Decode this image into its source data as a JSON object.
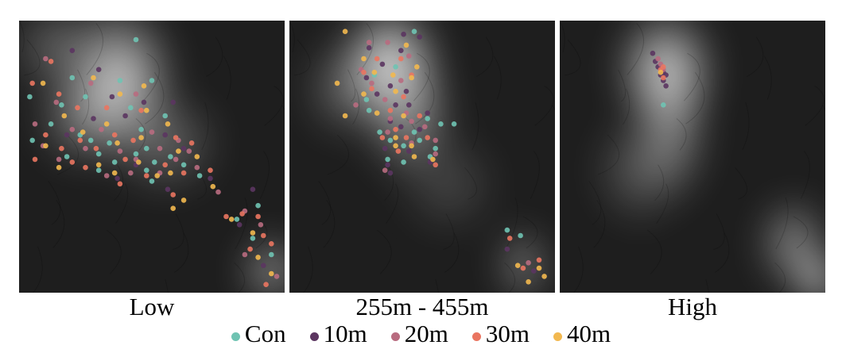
{
  "chart_data": {
    "type": "scatter",
    "title": "",
    "series_names": [
      "Con",
      "10m",
      "20m",
      "30m",
      "40m"
    ],
    "colors": {
      "Con": "#6fc3b2",
      "10m": "#5b3560",
      "20m": "#b86b7f",
      "30m": "#ea7560",
      "40m": "#f2b84f"
    },
    "legend_position": "bottom",
    "background": "grayscale elevation map",
    "panels": [
      {
        "label": "Low",
        "points": {
          "Con": [
            [
              0.44,
              0.07
            ],
            [
              0.2,
              0.21
            ],
            [
              0.38,
              0.22
            ],
            [
              0.04,
              0.28
            ],
            [
              0.5,
              0.22
            ],
            [
              0.25,
              0.28
            ],
            [
              0.16,
              0.31
            ],
            [
              0.42,
              0.32
            ],
            [
              0.55,
              0.35
            ],
            [
              0.12,
              0.38
            ],
            [
              0.23,
              0.42
            ],
            [
              0.05,
              0.44
            ],
            [
              0.34,
              0.45
            ],
            [
              0.46,
              0.4
            ],
            [
              0.27,
              0.44
            ],
            [
              0.48,
              0.47
            ],
            [
              0.3,
              0.49
            ],
            [
              0.44,
              0.49
            ],
            [
              0.57,
              0.5
            ],
            [
              0.18,
              0.5
            ],
            [
              0.36,
              0.52
            ],
            [
              0.51,
              0.52
            ],
            [
              0.62,
              0.53
            ],
            [
              0.48,
              0.55
            ],
            [
              0.68,
              0.57
            ],
            [
              0.5,
              0.59
            ],
            [
              0.3,
              0.55
            ],
            [
              0.9,
              0.68
            ],
            [
              0.88,
              0.8
            ],
            [
              0.95,
              0.86
            ],
            [
              0.82,
              0.73
            ]
          ],
          "10m": [
            [
              0.2,
              0.11
            ],
            [
              0.3,
              0.18
            ],
            [
              0.35,
              0.28
            ],
            [
              0.47,
              0.3
            ],
            [
              0.58,
              0.3
            ],
            [
              0.28,
              0.36
            ],
            [
              0.4,
              0.35
            ],
            [
              0.18,
              0.42
            ],
            [
              0.55,
              0.42
            ],
            [
              0.62,
              0.47
            ],
            [
              0.44,
              0.53
            ],
            [
              0.37,
              0.58
            ],
            [
              0.56,
              0.62
            ],
            [
              0.72,
              0.58
            ],
            [
              0.83,
              0.75
            ],
            [
              0.92,
              0.9
            ],
            [
              0.88,
              0.62
            ]
          ],
          "20m": [
            [
              0.1,
              0.14
            ],
            [
              0.27,
              0.23
            ],
            [
              0.14,
              0.3
            ],
            [
              0.44,
              0.27
            ],
            [
              0.06,
              0.38
            ],
            [
              0.2,
              0.4
            ],
            [
              0.31,
              0.4
            ],
            [
              0.5,
              0.41
            ],
            [
              0.6,
              0.44
            ],
            [
              0.09,
              0.46
            ],
            [
              0.25,
              0.47
            ],
            [
              0.38,
              0.48
            ],
            [
              0.53,
              0.47
            ],
            [
              0.64,
              0.48
            ],
            [
              0.15,
              0.51
            ],
            [
              0.44,
              0.51
            ],
            [
              0.59,
              0.51
            ],
            [
              0.67,
              0.54
            ],
            [
              0.33,
              0.57
            ],
            [
              0.42,
              0.56
            ],
            [
              0.53,
              0.56
            ],
            [
              0.75,
              0.63
            ],
            [
              0.85,
              0.7
            ],
            [
              0.91,
              0.75
            ],
            [
              0.85,
              0.86
            ],
            [
              0.97,
              0.94
            ]
          ],
          "30m": [
            [
              0.12,
              0.15
            ],
            [
              0.05,
              0.23
            ],
            [
              0.15,
              0.27
            ],
            [
              0.22,
              0.32
            ],
            [
              0.33,
              0.32
            ],
            [
              0.46,
              0.33
            ],
            [
              0.1,
              0.42
            ],
            [
              0.23,
              0.44
            ],
            [
              0.36,
              0.42
            ],
            [
              0.59,
              0.43
            ],
            [
              0.16,
              0.47
            ],
            [
              0.29,
              0.47
            ],
            [
              0.43,
              0.44
            ],
            [
              0.65,
              0.45
            ],
            [
              0.06,
              0.51
            ],
            [
              0.2,
              0.52
            ],
            [
              0.4,
              0.51
            ],
            [
              0.55,
              0.53
            ],
            [
              0.25,
              0.54
            ],
            [
              0.48,
              0.57
            ],
            [
              0.62,
              0.56
            ],
            [
              0.72,
              0.55
            ],
            [
              0.38,
              0.6
            ],
            [
              0.58,
              0.64
            ],
            [
              0.78,
              0.72
            ],
            [
              0.84,
              0.71
            ],
            [
              0.9,
              0.72
            ],
            [
              0.92,
              0.79
            ],
            [
              0.95,
              0.82
            ],
            [
              0.87,
              0.84
            ],
            [
              0.93,
              0.97
            ]
          ],
          "40m": [
            [
              0.09,
              0.23
            ],
            [
              0.28,
              0.21
            ],
            [
              0.47,
              0.24
            ],
            [
              0.38,
              0.27
            ],
            [
              0.48,
              0.33
            ],
            [
              0.17,
              0.35
            ],
            [
              0.33,
              0.38
            ],
            [
              0.56,
              0.38
            ],
            [
              0.24,
              0.41
            ],
            [
              0.46,
              0.43
            ],
            [
              0.1,
              0.46
            ],
            [
              0.37,
              0.45
            ],
            [
              0.6,
              0.48
            ],
            [
              0.67,
              0.5
            ],
            [
              0.15,
              0.54
            ],
            [
              0.3,
              0.53
            ],
            [
              0.45,
              0.52
            ],
            [
              0.57,
              0.56
            ],
            [
              0.36,
              0.56
            ],
            [
              0.52,
              0.57
            ],
            [
              0.73,
              0.61
            ],
            [
              0.62,
              0.66
            ],
            [
              0.58,
              0.69
            ],
            [
              0.8,
              0.73
            ],
            [
              0.88,
              0.78
            ],
            [
              0.95,
              0.93
            ],
            [
              0.9,
              0.87
            ]
          ]
        }
      },
      {
        "label": "255m - 455m",
        "points": {
          "Con": [
            [
              0.47,
              0.04
            ],
            [
              0.32,
              0.2
            ],
            [
              0.4,
              0.17
            ],
            [
              0.29,
              0.29
            ],
            [
              0.3,
              0.33
            ],
            [
              0.52,
              0.36
            ],
            [
              0.57,
              0.38
            ],
            [
              0.34,
              0.41
            ],
            [
              0.62,
              0.38
            ],
            [
              0.47,
              0.41
            ],
            [
              0.38,
              0.44
            ],
            [
              0.43,
              0.46
            ],
            [
              0.55,
              0.47
            ],
            [
              0.49,
              0.44
            ],
            [
              0.37,
              0.51
            ],
            [
              0.43,
              0.52
            ],
            [
              0.53,
              0.5
            ],
            [
              0.82,
              0.77
            ],
            [
              0.87,
              0.79
            ]
          ],
          "10m": [
            [
              0.43,
              0.05
            ],
            [
              0.49,
              0.06
            ],
            [
              0.3,
              0.1
            ],
            [
              0.42,
              0.11
            ],
            [
              0.35,
              0.16
            ],
            [
              0.29,
              0.21
            ],
            [
              0.38,
              0.24
            ],
            [
              0.44,
              0.26
            ],
            [
              0.33,
              0.27
            ],
            [
              0.4,
              0.31
            ],
            [
              0.45,
              0.31
            ],
            [
              0.52,
              0.34
            ],
            [
              0.38,
              0.37
            ],
            [
              0.42,
              0.39
            ],
            [
              0.49,
              0.4
            ],
            [
              0.36,
              0.47
            ],
            [
              0.45,
              0.48
            ],
            [
              0.53,
              0.52
            ],
            [
              0.37,
              0.53
            ],
            [
              0.38,
              0.56
            ],
            [
              0.82,
              0.84
            ],
            [
              0.92,
              0.92
            ]
          ],
          "20m": [
            [
              0.3,
              0.08
            ],
            [
              0.37,
              0.08
            ],
            [
              0.45,
              0.13
            ],
            [
              0.27,
              0.18
            ],
            [
              0.31,
              0.23
            ],
            [
              0.42,
              0.22
            ],
            [
              0.36,
              0.29
            ],
            [
              0.25,
              0.31
            ],
            [
              0.44,
              0.34
            ],
            [
              0.38,
              0.36
            ],
            [
              0.46,
              0.37
            ],
            [
              0.51,
              0.39
            ],
            [
              0.37,
              0.41
            ],
            [
              0.55,
              0.44
            ],
            [
              0.46,
              0.45
            ],
            [
              0.55,
              0.49
            ],
            [
              0.36,
              0.55
            ],
            [
              0.9,
              0.89
            ]
          ],
          "30m": [
            [
              0.33,
              0.14
            ],
            [
              0.42,
              0.14
            ],
            [
              0.28,
              0.19
            ],
            [
              0.46,
              0.2
            ],
            [
              0.31,
              0.25
            ],
            [
              0.43,
              0.28
            ],
            [
              0.38,
              0.33
            ],
            [
              0.49,
              0.35
            ],
            [
              0.4,
              0.4
            ],
            [
              0.35,
              0.43
            ],
            [
              0.44,
              0.43
            ],
            [
              0.52,
              0.43
            ],
            [
              0.41,
              0.48
            ],
            [
              0.55,
              0.53
            ],
            [
              0.83,
              0.8
            ],
            [
              0.88,
              0.91
            ],
            [
              0.94,
              0.88
            ]
          ],
          "40m": [
            [
              0.21,
              0.04
            ],
            [
              0.44,
              0.09
            ],
            [
              0.28,
              0.14
            ],
            [
              0.48,
              0.17
            ],
            [
              0.32,
              0.19
            ],
            [
              0.39,
              0.2
            ],
            [
              0.46,
              0.21
            ],
            [
              0.18,
              0.23
            ],
            [
              0.4,
              0.26
            ],
            [
              0.28,
              0.27
            ],
            [
              0.43,
              0.35
            ],
            [
              0.21,
              0.35
            ],
            [
              0.33,
              0.34
            ],
            [
              0.4,
              0.43
            ],
            [
              0.46,
              0.46
            ],
            [
              0.4,
              0.46
            ],
            [
              0.47,
              0.5
            ],
            [
              0.54,
              0.51
            ],
            [
              0.86,
              0.9
            ],
            [
              0.94,
              0.91
            ],
            [
              0.96,
              0.94
            ],
            [
              0.9,
              0.96
            ]
          ]
        }
      },
      {
        "label": "High",
        "points": {
          "Con": [
            [
              0.39,
              0.31
            ]
          ],
          "10m": [
            [
              0.35,
              0.12
            ],
            [
              0.36,
              0.15
            ],
            [
              0.37,
              0.17
            ],
            [
              0.39,
              0.19
            ],
            [
              0.38,
              0.2
            ],
            [
              0.39,
              0.22
            ],
            [
              0.4,
              0.2
            ],
            [
              0.4,
              0.24
            ]
          ],
          "20m": [
            [
              0.37,
              0.14
            ],
            [
              0.38,
              0.16
            ],
            [
              0.39,
              0.18
            ]
          ],
          "30m": [
            [
              0.38,
              0.18
            ],
            [
              0.39,
              0.17
            ],
            [
              0.39,
              0.21
            ]
          ],
          "40m": [
            [
              0.38,
              0.19
            ]
          ]
        }
      }
    ]
  }
}
